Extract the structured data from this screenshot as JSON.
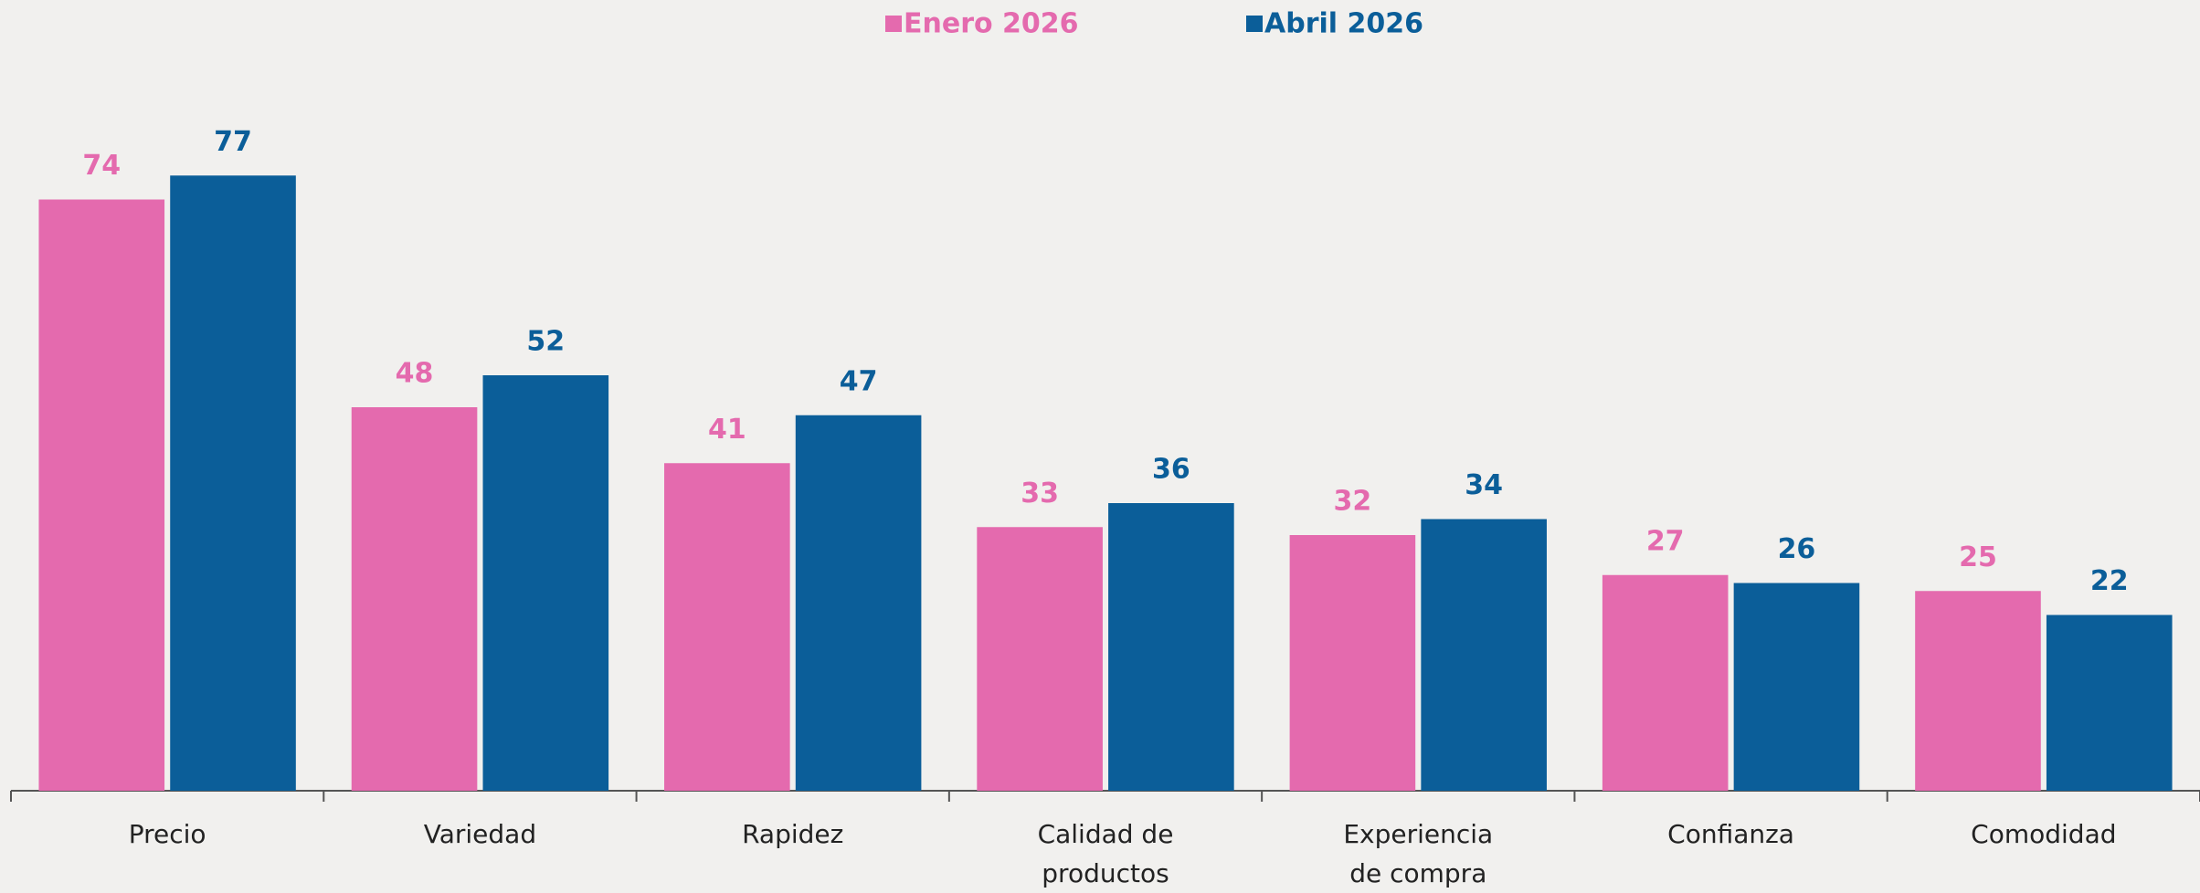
{
  "chart_data": {
    "type": "bar",
    "categories": [
      "Precio",
      "Variedad",
      "Rapidez",
      "Calidad de productos",
      "Experiencia de compra",
      "Confianza",
      "Comodidad"
    ],
    "series": [
      {
        "name": "Enero 2026",
        "color": "#e46aae",
        "values": [
          74,
          48,
          41,
          33,
          32,
          27,
          25
        ]
      },
      {
        "name": "Abril 2026",
        "color": "#0b5e99",
        "values": [
          77,
          52,
          47,
          36,
          34,
          26,
          22
        ]
      }
    ],
    "ylim": [
      0,
      80
    ],
    "legend": "top"
  }
}
